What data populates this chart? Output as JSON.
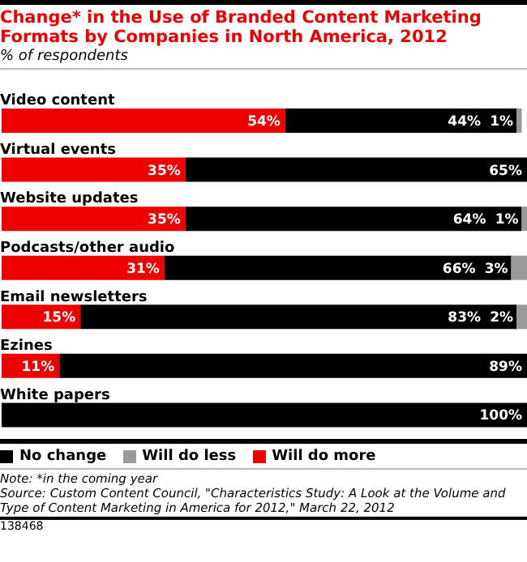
{
  "chart_data": {
    "type": "bar",
    "orientation": "horizontal",
    "stacked": true,
    "title": "Change* in the Use of Branded Content Marketing Formats by Companies in North America, 2012",
    "subtitle": "% of respondents",
    "categories": [
      "Video content",
      "Virtual events",
      "Website updates",
      "Podcasts/other audio",
      "Email newsletters",
      "Ezines",
      "White papers"
    ],
    "xlim": [
      0,
      100
    ],
    "tick_labels": "y",
    "grid": false,
    "legend": "bottom left",
    "series": [
      {
        "name": "Will do more",
        "color": "#ee0000",
        "values": [
          54,
          35,
          35,
          31,
          15,
          11,
          0
        ],
        "value_labels": [
          "54%",
          "35%",
          "35%",
          "31%",
          "15%",
          "11%",
          null
        ]
      },
      {
        "name": "No change",
        "color": "#000000",
        "values": [
          44,
          65,
          64,
          66,
          83,
          89,
          100
        ],
        "value_labels": [
          "44%",
          "65%",
          "64%",
          "66%",
          "83%",
          "89%",
          "100%"
        ]
      },
      {
        "name": "Will do less",
        "color": "#999999",
        "values": [
          1,
          0,
          1,
          3,
          2,
          0,
          0
        ],
        "value_labels": [
          "1%",
          null,
          "1%",
          "3%",
          "2%",
          null,
          null
        ]
      }
    ],
    "annotations": [
      "Note: *in the coming year",
      "Source: Custom Content Council, \"Characteristics Study: A Look at the Volume and Type of Content Marketing in America for 2012,\" March 22, 2012",
      "138468"
    ]
  }
}
